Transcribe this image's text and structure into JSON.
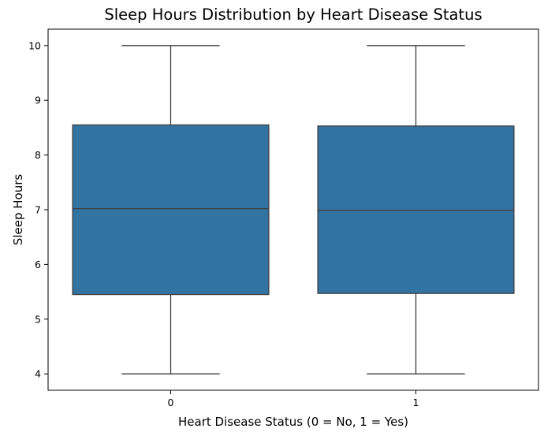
{
  "chart_data": {
    "type": "box",
    "title": "Sleep Hours Distribution by Heart Disease Status",
    "xlabel": "Heart Disease Status (0 = No, 1 = Yes)",
    "ylabel": "Sleep Hours",
    "categories": [
      "0",
      "1"
    ],
    "boxes": [
      {
        "category": "0",
        "whisker_low": 4.0,
        "q1": 5.45,
        "median": 7.02,
        "q3": 8.55,
        "whisker_high": 10.0
      },
      {
        "category": "1",
        "whisker_low": 4.0,
        "q1": 5.47,
        "median": 6.99,
        "q3": 8.53,
        "whisker_high": 10.0
      }
    ],
    "y_ticks": [
      4,
      5,
      6,
      7,
      8,
      9,
      10
    ],
    "ylim": [
      3.7,
      10.3
    ],
    "grid": false,
    "legend": false,
    "colors": {
      "box_fill": "#3274a1",
      "lines": "#3f3f3f"
    }
  }
}
